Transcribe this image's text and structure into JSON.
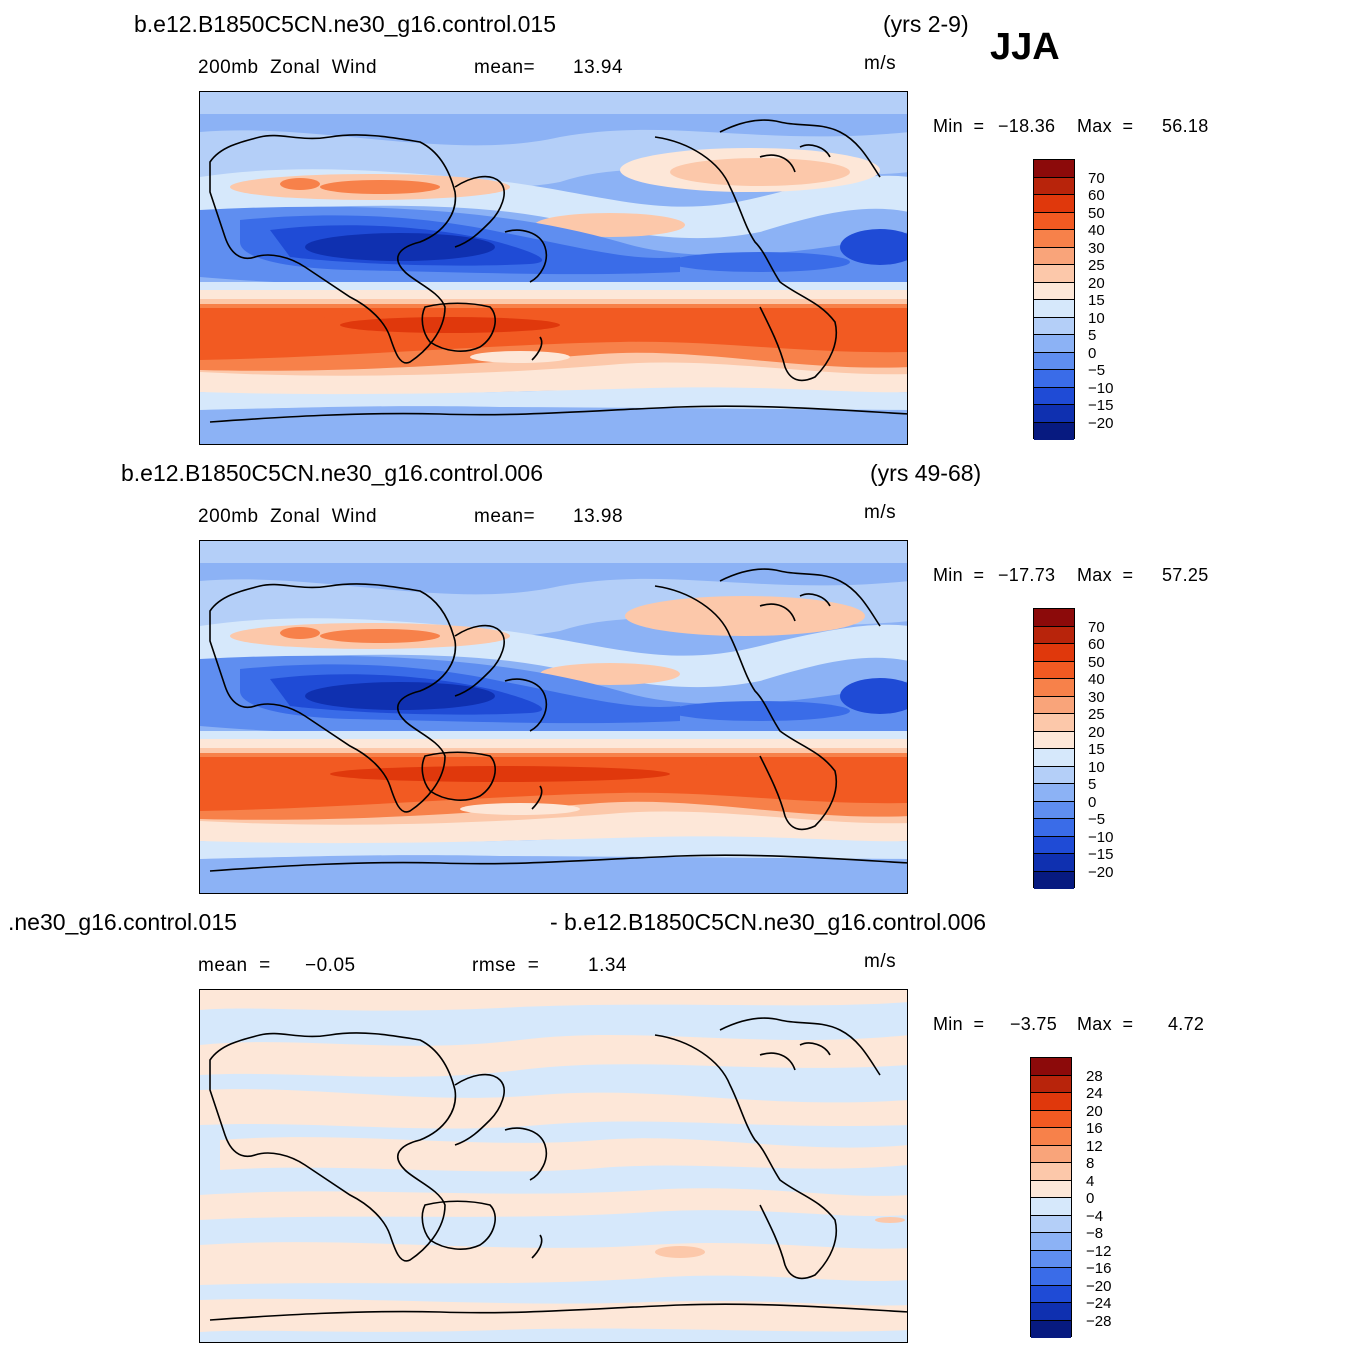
{
  "season": "JJA",
  "units": "m/s",
  "panels": [
    {
      "title": "b.e12.B1850C5CN.ne30_g16.control.015",
      "years": "(yrs 2-9)",
      "variable": "200mb  Zonal  Wind",
      "stat1_label": "mean=",
      "stat1_value": "13.94",
      "min_label": "Min  =",
      "min_value": "−18.36",
      "max_label": "Max  =",
      "max_value": "56.18",
      "levels": [
        "70",
        "60",
        "50",
        "40",
        "30",
        "25",
        "20",
        "15",
        "10",
        "5",
        "0",
        "−5",
        "−10",
        "−15",
        "−20"
      ]
    },
    {
      "title": "b.e12.B1850C5CN.ne30_g16.control.006",
      "years": "(yrs 49-68)",
      "variable": "200mb  Zonal  Wind",
      "stat1_label": "mean=",
      "stat1_value": "13.98",
      "min_label": "Min  =",
      "min_value": "−17.73",
      "max_label": "Max  =",
      "max_value": "57.25",
      "levels": [
        "70",
        "60",
        "50",
        "40",
        "30",
        "25",
        "20",
        "15",
        "10",
        "5",
        "0",
        "−5",
        "−10",
        "−15",
        "−20"
      ]
    },
    {
      "title_left": ".ne30_g16.control.015",
      "title_right": "- b.e12.B1850C5CN.ne30_g16.control.006",
      "stat1_label": "mean  =",
      "stat1_value": "−0.05",
      "stat2_label": "rmse  =",
      "stat2_value": "1.34",
      "min_label": "Min  =",
      "min_value": "−3.75",
      "max_label": "Max  =",
      "max_value": "4.72",
      "levels": [
        "28",
        "24",
        "20",
        "16",
        "12",
        "8",
        "4",
        "0",
        "−4",
        "−8",
        "−12",
        "−16",
        "−20",
        "−24",
        "−28"
      ]
    }
  ],
  "colors": {
    "scale": [
      "#8c0a0a",
      "#b8240b",
      "#e0380c",
      "#f25a22",
      "#f7814a",
      "#f9a47a",
      "#fcc8aa",
      "#fde7d8",
      "#d6e8fb",
      "#b4cff8",
      "#8cb2f5",
      "#5f8ef0",
      "#3a6ce8",
      "#1f4bd6",
      "#0f30b0",
      "#071a80"
    ]
  }
}
